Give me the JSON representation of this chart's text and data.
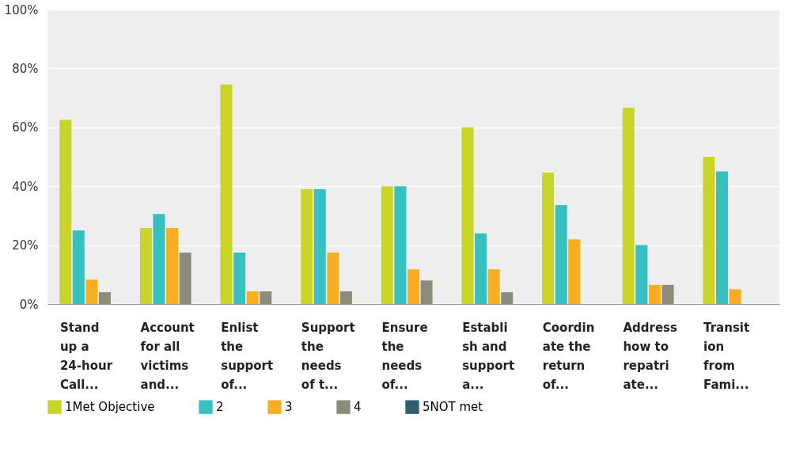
{
  "chart_data": {
    "type": "bar",
    "categories": [
      "Stand up a 24-hour Call...",
      "Account for all victims and...",
      "Enlist the support of...",
      "Support the needs of t...",
      "Ensure the needs of...",
      "Establish and support a...",
      "Coordinate the return of...",
      "Address how to repatriate...",
      "Transition from Fami..."
    ],
    "series": [
      {
        "name": "1Met Objective",
        "color": "#c8d42a",
        "values": [
          62.5,
          25.8,
          74.5,
          39,
          40,
          60,
          44.6,
          66.7,
          50
        ]
      },
      {
        "name": "2",
        "color": "#38bfc0",
        "values": [
          25,
          30.6,
          17.5,
          39,
          40,
          24,
          33.6,
          20,
          45
        ]
      },
      {
        "name": "3",
        "color": "#f7ae22",
        "values": [
          8.3,
          25.8,
          4.3,
          17.5,
          11.8,
          11.8,
          22,
          6.5,
          5
        ]
      },
      {
        "name": "4",
        "color": "#8c8c7a",
        "values": [
          4,
          17.5,
          4.3,
          4.3,
          8,
          4,
          0,
          6.5,
          0
        ]
      },
      {
        "name": "5NOT met",
        "color": "#2e5f6e",
        "values": [
          0,
          0,
          0,
          0,
          0,
          0,
          0,
          0,
          0
        ]
      }
    ],
    "ylim": [
      0,
      100
    ],
    "yticks": [
      {
        "value": 0,
        "label": "0%"
      },
      {
        "value": 20,
        "label": "20%"
      },
      {
        "value": 40,
        "label": "40%"
      },
      {
        "value": 60,
        "label": "60%"
      },
      {
        "value": 80,
        "label": "80%"
      },
      {
        "value": 100,
        "label": "100%"
      }
    ],
    "grid": "y",
    "legend": "bottom"
  }
}
